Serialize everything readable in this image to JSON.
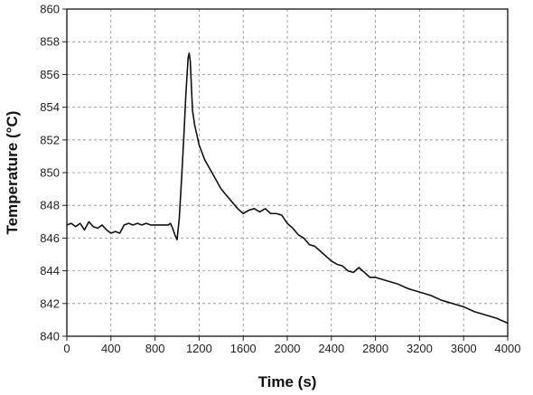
{
  "chart_data": {
    "type": "line",
    "title": "",
    "xlabel": "Time (s)",
    "ylabel": "Temperature (°C)",
    "xlim": [
      0,
      4000
    ],
    "ylim": [
      840,
      860
    ],
    "grid": true,
    "legend": "none",
    "x_ticks": [
      0,
      400,
      800,
      1200,
      1600,
      2000,
      2400,
      2800,
      3200,
      3600,
      4000
    ],
    "y_ticks": [
      840,
      842,
      844,
      846,
      848,
      850,
      852,
      854,
      856,
      858,
      860
    ],
    "series": [
      {
        "color": "#111111",
        "x": [
          0,
          40,
          80,
          120,
          160,
          200,
          240,
          280,
          320,
          360,
          400,
          440,
          480,
          520,
          560,
          600,
          640,
          680,
          720,
          760,
          800,
          840,
          880,
          920,
          940,
          960,
          980,
          1000,
          1020,
          1040,
          1060,
          1080,
          1100,
          1110,
          1120,
          1140,
          1160,
          1200,
          1250,
          1300,
          1350,
          1400,
          1450,
          1500,
          1550,
          1600,
          1650,
          1700,
          1750,
          1800,
          1850,
          1900,
          1950,
          2000,
          2050,
          2100,
          2150,
          2200,
          2250,
          2300,
          2350,
          2400,
          2450,
          2500,
          2550,
          2600,
          2650,
          2700,
          2750,
          2800,
          2900,
          3000,
          3100,
          3200,
          3300,
          3400,
          3500,
          3600,
          3700,
          3800,
          3900,
          4000
        ],
        "y": [
          846.8,
          846.9,
          846.7,
          846.9,
          846.5,
          847.0,
          846.7,
          846.6,
          846.8,
          846.5,
          846.3,
          846.4,
          846.3,
          846.8,
          846.9,
          846.8,
          846.9,
          846.8,
          846.9,
          846.8,
          846.8,
          846.8,
          846.8,
          846.8,
          846.9,
          846.6,
          846.2,
          845.9,
          847.2,
          849.5,
          852.0,
          854.8,
          857.0,
          857.3,
          856.8,
          853.8,
          852.9,
          851.7,
          850.8,
          850.2,
          849.6,
          849.0,
          848.6,
          848.2,
          847.8,
          847.5,
          847.7,
          847.8,
          847.6,
          847.8,
          847.5,
          847.5,
          847.4,
          846.9,
          846.6,
          846.2,
          846.0,
          845.6,
          845.5,
          845.2,
          844.9,
          844.6,
          844.4,
          844.3,
          844.0,
          843.9,
          844.2,
          843.9,
          843.6,
          843.6,
          843.4,
          843.2,
          842.9,
          842.7,
          842.5,
          842.2,
          842.0,
          841.8,
          841.5,
          841.3,
          841.1,
          840.8
        ]
      }
    ]
  }
}
